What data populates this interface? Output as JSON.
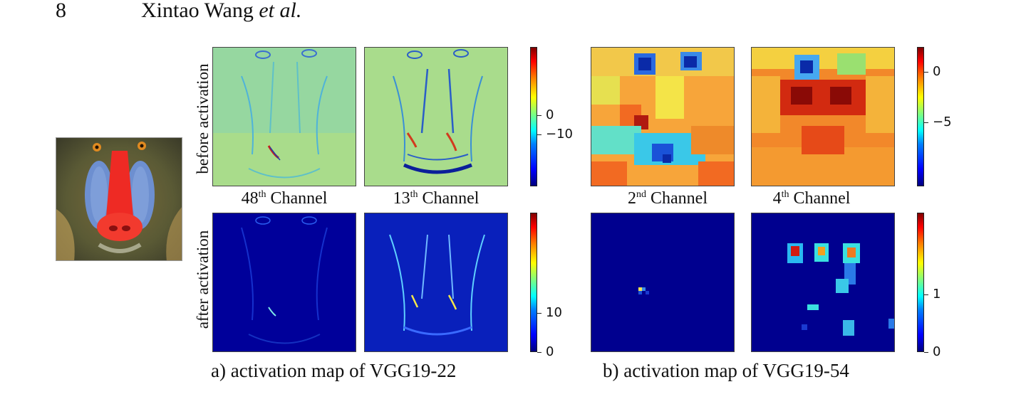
{
  "header": {
    "page_number": "8",
    "authors": "Xintao Wang",
    "et_al": "et al."
  },
  "row_labels": {
    "top": "before activation",
    "bottom": "after activation"
  },
  "group_a": {
    "channels": [
      {
        "num": "48",
        "sup": "th",
        "word": "Channel"
      },
      {
        "num": "13",
        "sup": "th",
        "word": "Channel"
      }
    ],
    "colorbar_top_ticks": [
      "0",
      "−10"
    ],
    "colorbar_bottom_ticks": [
      "10",
      "0"
    ],
    "caption": "a) activation map of  VGG19-22"
  },
  "group_b": {
    "channels": [
      {
        "num": "2",
        "sup": "nd",
        "word": "Channel"
      },
      {
        "num": "4",
        "sup": "th",
        "word": "Channel"
      }
    ],
    "colorbar_top_ticks": [
      "0",
      "−5"
    ],
    "colorbar_bottom_ticks": [
      "1",
      "0"
    ],
    "caption": "b) activation map of  VGG19-54"
  },
  "colors": {
    "jet_dark_blue": "#00008b",
    "jet_green": "#9cf05a",
    "jet_orange": "#f79a2a",
    "jet_red": "#c80000"
  }
}
